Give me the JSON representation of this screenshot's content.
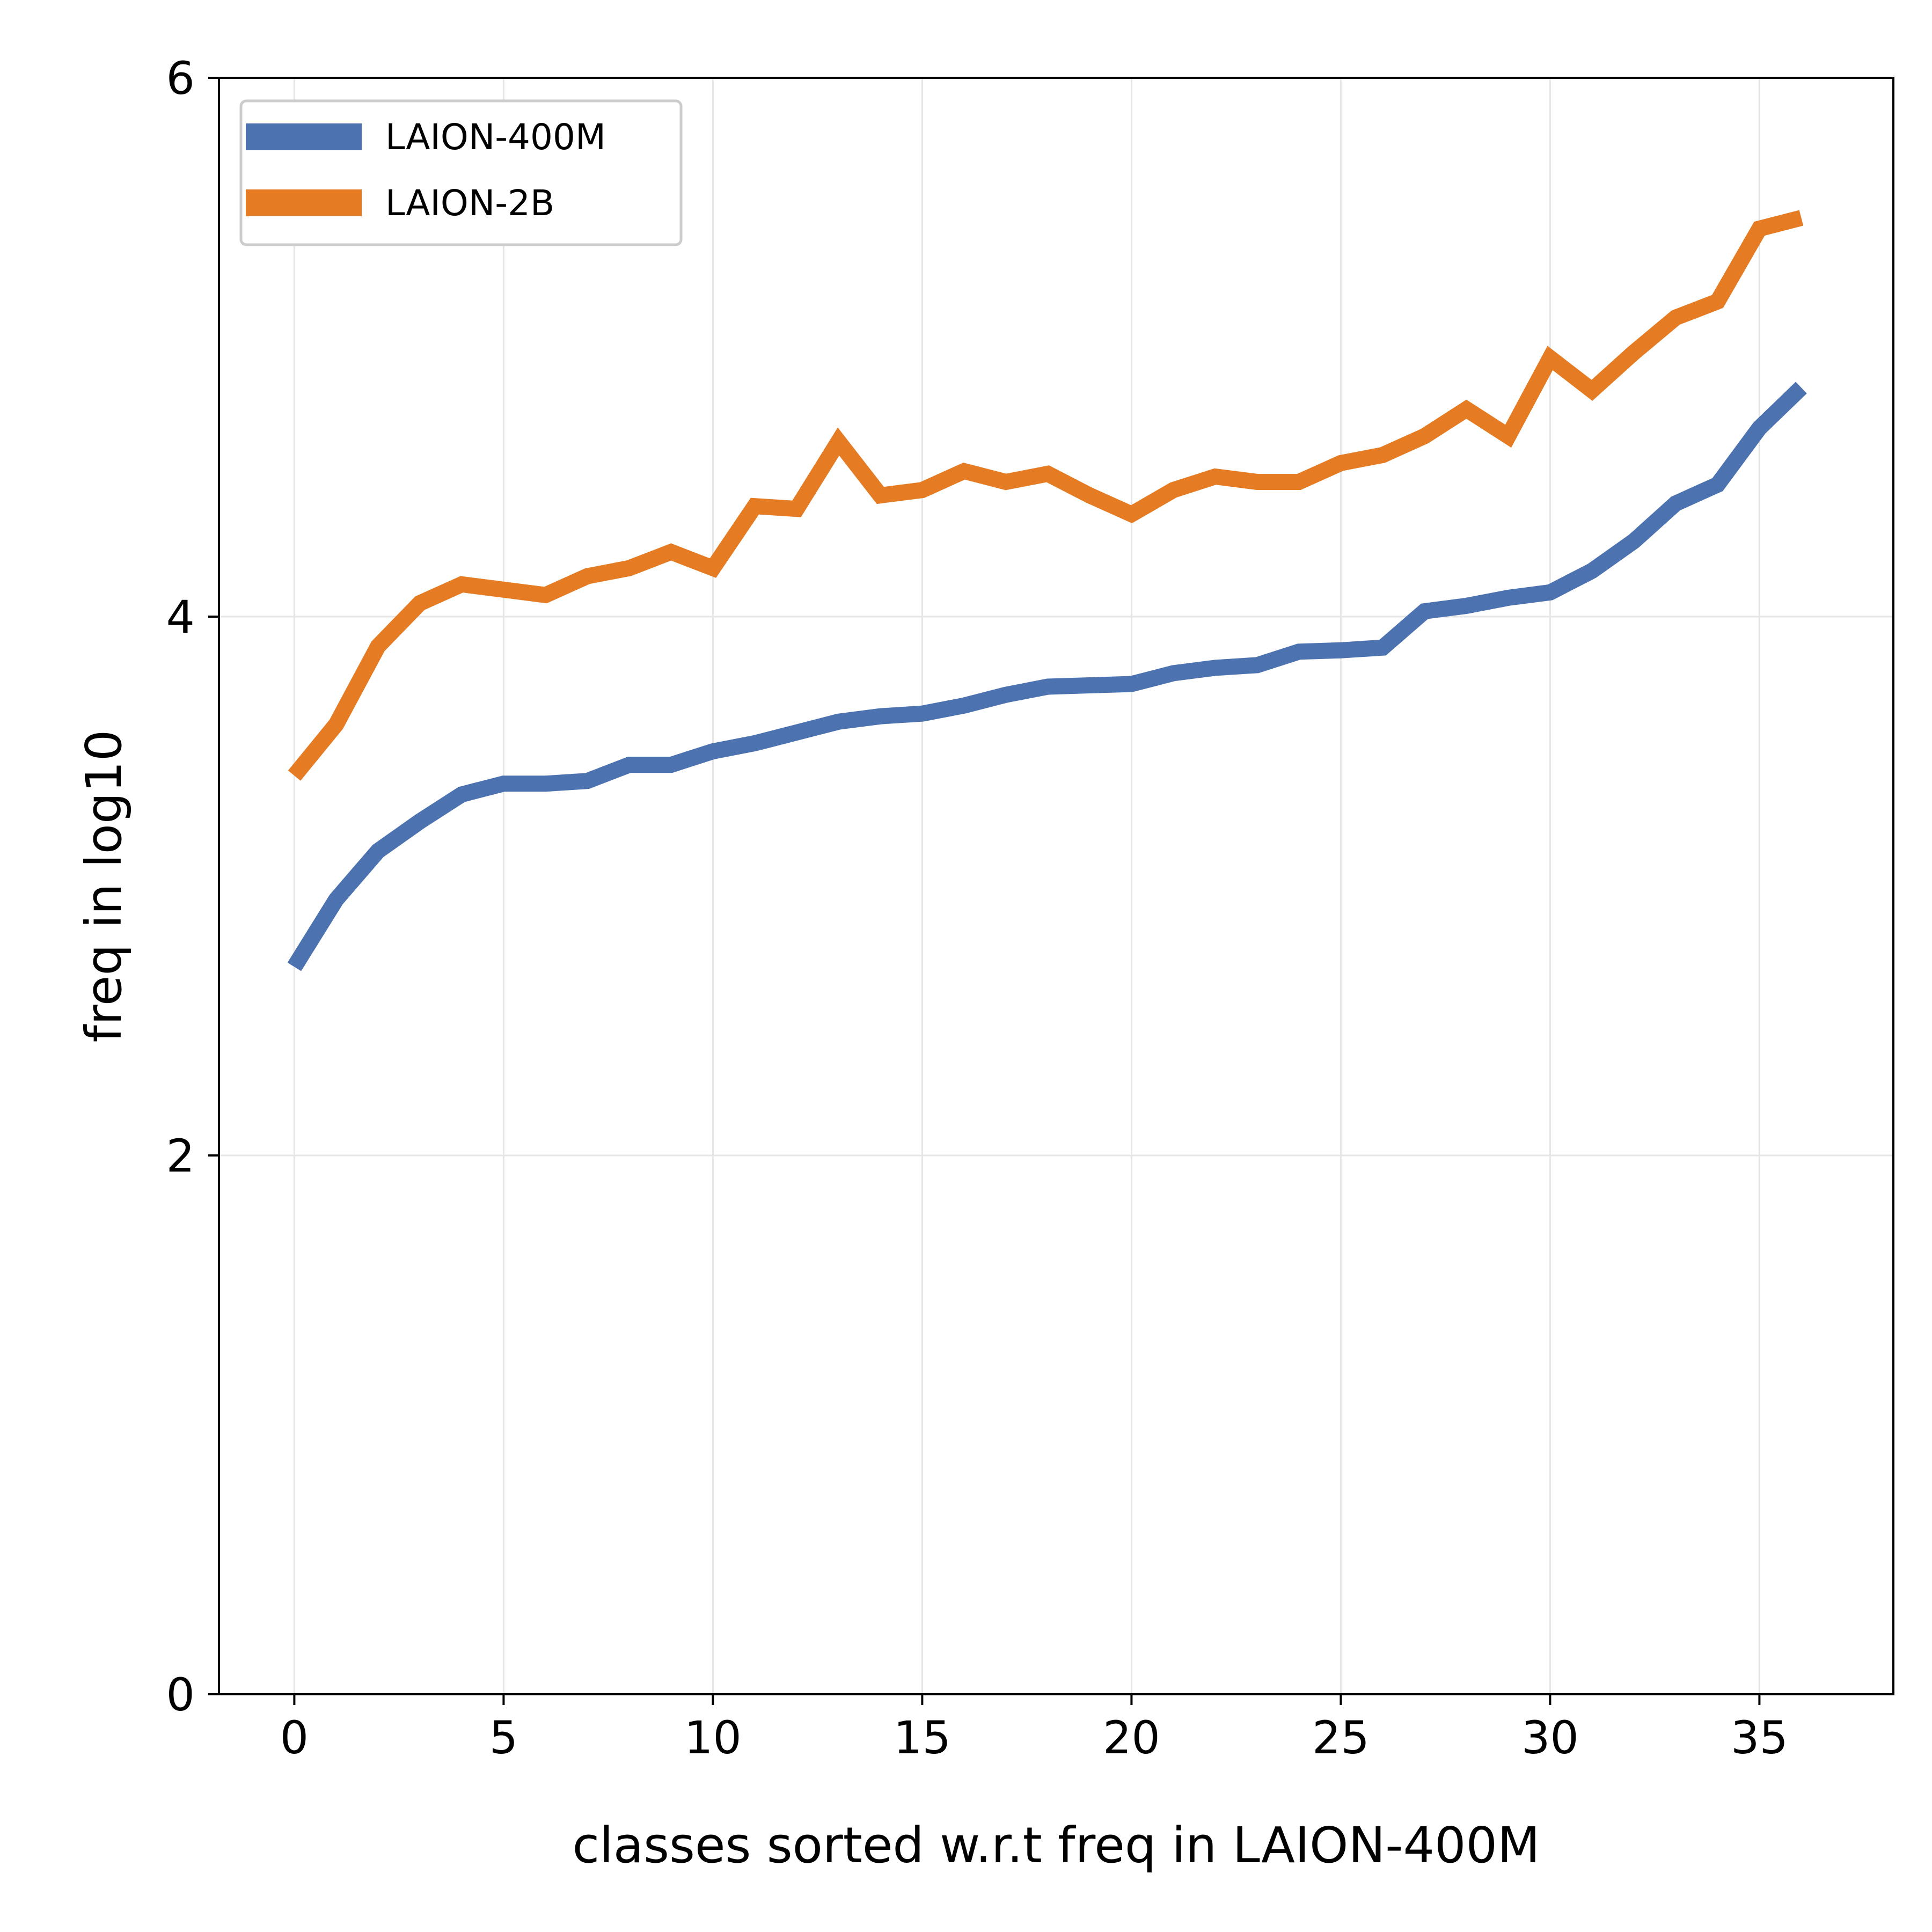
{
  "chart_data": {
    "type": "line",
    "title": "",
    "xlabel": "classes sorted w.r.t freq in LAION-400M",
    "ylabel": "freq in log10",
    "xlim": [
      -1.8,
      38.2
    ],
    "ylim": [
      0,
      6
    ],
    "xticks": [
      0,
      5,
      10,
      15,
      20,
      25,
      30,
      35
    ],
    "yticks": [
      0,
      2,
      4,
      6
    ],
    "grid": true,
    "legend": "top-left",
    "x": [
      0,
      1,
      2,
      3,
      4,
      5,
      6,
      7,
      8,
      9,
      10,
      11,
      12,
      13,
      14,
      15,
      16,
      17,
      18,
      19,
      20,
      21,
      22,
      23,
      24,
      25,
      26,
      27,
      28,
      29,
      30,
      31,
      32,
      33,
      34,
      35,
      36
    ],
    "series": [
      {
        "name": "LAION-400M",
        "color": "#4c72b0",
        "values": [
          2.7,
          2.95,
          3.13,
          3.24,
          3.34,
          3.38,
          3.38,
          3.39,
          3.45,
          3.45,
          3.5,
          3.53,
          3.57,
          3.61,
          3.63,
          3.64,
          3.67,
          3.71,
          3.74,
          3.745,
          3.75,
          3.79,
          3.81,
          3.82,
          3.87,
          3.875,
          3.885,
          4.02,
          4.04,
          4.07,
          4.09,
          4.17,
          4.28,
          4.42,
          4.49,
          4.7,
          4.85
        ]
      },
      {
        "name": "LAION-2B",
        "color": "#e57b22",
        "values": [
          3.41,
          3.6,
          3.89,
          4.05,
          4.12,
          4.1,
          4.08,
          4.15,
          4.18,
          4.24,
          4.18,
          4.41,
          4.4,
          4.65,
          4.45,
          4.47,
          4.54,
          4.5,
          4.53,
          4.45,
          4.38,
          4.47,
          4.52,
          4.5,
          4.5,
          4.57,
          4.6,
          4.67,
          4.77,
          4.67,
          4.96,
          4.84,
          4.98,
          5.11,
          5.17,
          5.44,
          5.48
        ]
      }
    ]
  }
}
